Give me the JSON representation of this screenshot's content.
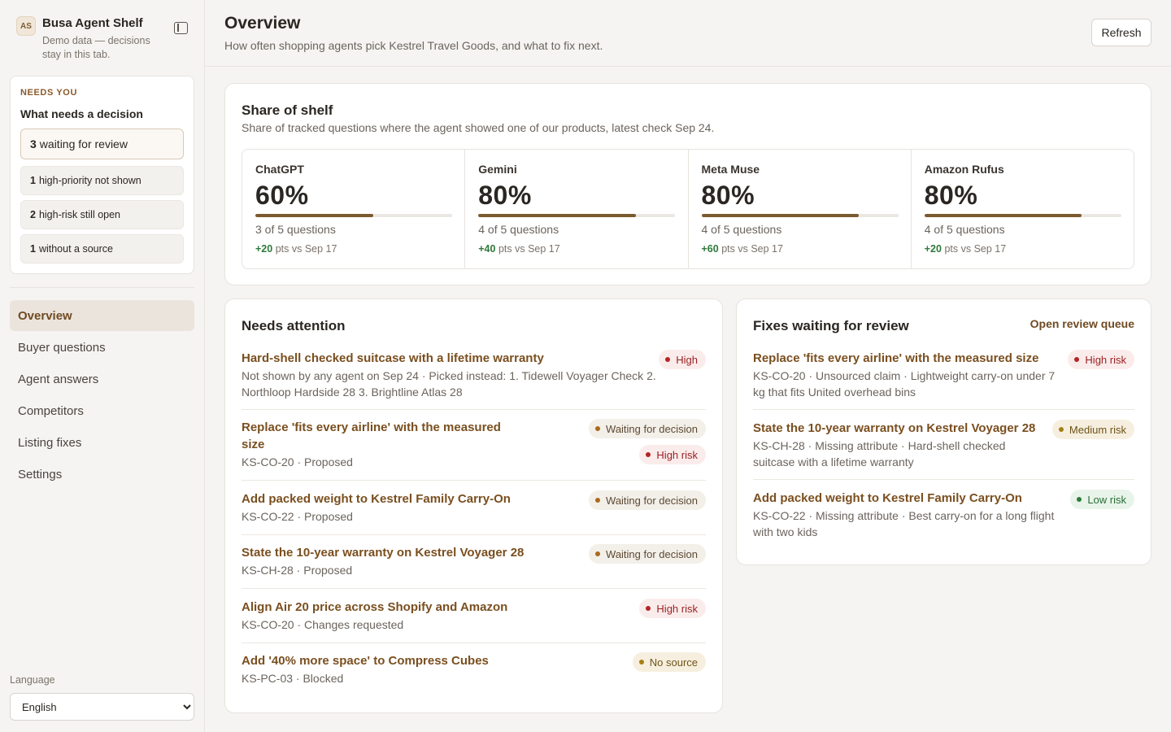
{
  "brand": {
    "initials": "AS",
    "name": "Busa Agent Shelf",
    "subtitle": "Demo data — decisions stay in this tab."
  },
  "needs": {
    "eyebrow": "NEEDS YOU",
    "title": "What needs a decision",
    "items": [
      {
        "count": "3",
        "label": "waiting for review"
      },
      {
        "count": "1",
        "label": "high-priority not shown"
      },
      {
        "count": "2",
        "label": "high-risk still open"
      },
      {
        "count": "1",
        "label": "without a source"
      }
    ]
  },
  "nav": {
    "items": [
      {
        "label": "Overview"
      },
      {
        "label": "Buyer questions"
      },
      {
        "label": "Agent answers"
      },
      {
        "label": "Competitors"
      },
      {
        "label": "Listing fixes"
      },
      {
        "label": "Settings"
      }
    ]
  },
  "language": {
    "label": "Language",
    "selected": "English"
  },
  "header": {
    "title": "Overview",
    "subtitle": "How often shopping agents pick Kestrel Travel Goods, and what to fix next.",
    "refresh_label": "Refresh"
  },
  "share": {
    "title": "Share of shelf",
    "subtitle": "Share of tracked questions where the agent showed one of our products, latest check Sep 24.",
    "accent_color": "#7b5a2f",
    "agents": [
      {
        "name": "ChatGPT",
        "pct": "60%",
        "value": 0.6,
        "count": "3 of 5 questions",
        "delta": "+20",
        "delta_suffix": "pts vs Sep 17"
      },
      {
        "name": "Gemini",
        "pct": "80%",
        "value": 0.8,
        "count": "4 of 5 questions",
        "delta": "+40",
        "delta_suffix": "pts vs Sep 17"
      },
      {
        "name": "Meta Muse",
        "pct": "80%",
        "value": 0.8,
        "count": "4 of 5 questions",
        "delta": "+60",
        "delta_suffix": "pts vs Sep 17"
      },
      {
        "name": "Amazon Rufus",
        "pct": "80%",
        "value": 0.8,
        "count": "4 of 5 questions",
        "delta": "+20",
        "delta_suffix": "pts vs Sep 17"
      }
    ]
  },
  "attention": {
    "title": "Needs attention",
    "rows": [
      {
        "title": "Hard-shell checked suitcase with a lifetime warranty",
        "meta": "Not shown by any agent on Sep 24 · Picked instead: 1. Tidewell Voyager Check 2. Northloop Hardside 28 3. Brightline Atlas 28",
        "badges": [
          {
            "label": "High",
            "tone": "red"
          }
        ]
      },
      {
        "title": "Replace 'fits every airline' with the measured size",
        "meta": "KS-CO-20 · Proposed",
        "badges": [
          {
            "label": "Waiting for decision",
            "tone": "amber"
          },
          {
            "label": "High risk",
            "tone": "red"
          }
        ]
      },
      {
        "title": "Add packed weight to Kestrel Family Carry-On",
        "meta": "KS-CO-22 · Proposed",
        "badges": [
          {
            "label": "Waiting for decision",
            "tone": "amber"
          }
        ]
      },
      {
        "title": "State the 10-year warranty on Kestrel Voyager 28",
        "meta": "KS-CH-28 · Proposed",
        "badges": [
          {
            "label": "Waiting for decision",
            "tone": "amber"
          }
        ]
      },
      {
        "title": "Align Air 20 price across Shopify and Amazon",
        "meta": "KS-CO-20 · Changes requested",
        "badges": [
          {
            "label": "High risk",
            "tone": "red"
          }
        ]
      },
      {
        "title": "Add '40% more space' to Compress Cubes",
        "meta": "KS-PC-03 · Blocked",
        "badges": [
          {
            "label": "No source",
            "tone": "yellow"
          }
        ]
      }
    ]
  },
  "fixes": {
    "title": "Fixes waiting for review",
    "link_label": "Open review queue",
    "rows": [
      {
        "title": "Replace 'fits every airline' with the measured size",
        "meta": "KS-CO-20 · Unsourced claim · Lightweight carry-on under 7 kg that fits United overhead bins",
        "badge": {
          "label": "High risk",
          "tone": "red"
        }
      },
      {
        "title": "State the 10-year warranty on Kestrel Voyager 28",
        "meta": "KS-CH-28 · Missing attribute · Hard-shell checked suitcase with a lifetime warranty",
        "badge": {
          "label": "Medium risk",
          "tone": "yellow"
        }
      },
      {
        "title": "Add packed weight to Kestrel Family Carry-On",
        "meta": "KS-CO-22 · Missing attribute · Best carry-on for a long flight with two kids",
        "badge": {
          "label": "Low risk",
          "tone": "green"
        }
      }
    ]
  }
}
